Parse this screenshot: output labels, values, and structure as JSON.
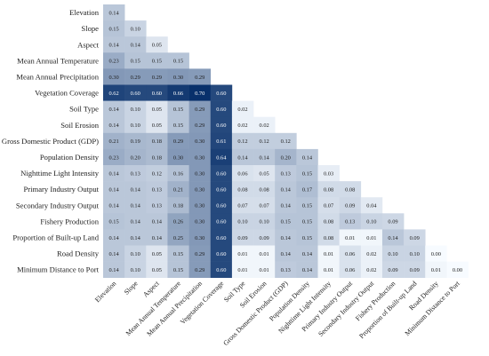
{
  "chart_data": {
    "type": "heatmap",
    "shape": "lower-triangular",
    "title": "",
    "xlabel": "",
    "ylabel": "",
    "color_scale": {
      "low": "#f7fbff",
      "high": "#08306b",
      "min": 0.0,
      "max": 0.7
    },
    "row_labels": [
      "Elevation",
      "Slope",
      "Aspect",
      "Mean Annual Temperature",
      "Mean Annual Precipitation",
      "Vegetation Coverage",
      "Soil Type",
      "Soil Erosion",
      "Gross Domestic Product (GDP)",
      "Population Density",
      "Nighttime Light Intensity",
      "Primary Industry Output",
      "Secondary Industry Output",
      "Fishery Production",
      "Proportion of Built-up Land",
      "Road Density",
      "Minimum Distance to Port"
    ],
    "col_labels": [
      "Elevation",
      "Slope",
      "Aspect",
      "Mean Annual Temperature",
      "Mean Annual Precipitation",
      "Vegetation Coverage",
      "Soil Type",
      "Soil Erosion",
      "Gross Domestic Product (GDP)",
      "Population Density",
      "Nighttime Light Intensity",
      "Primary Industry Output",
      "Secondary Industry Output",
      "Fishery Production",
      "Proportion of Built-up Land",
      "Road Density",
      "Minimum Distance to Port"
    ],
    "values": [
      [
        "0.14"
      ],
      [
        "0.15",
        "0.10"
      ],
      [
        "0.14",
        "0.14",
        "0.05"
      ],
      [
        "0.23",
        "0.15",
        "0.15",
        "0.15"
      ],
      [
        "0.30",
        "0.29",
        "0.29",
        "0.30",
        "0.29"
      ],
      [
        "0.62",
        "0.60",
        "0.60",
        "0.66",
        "0.70",
        "0.60"
      ],
      [
        "0.14",
        "0.10",
        "0.05",
        "0.15",
        "0.29",
        "0.60",
        "0.02"
      ],
      [
        "0.14",
        "0.10",
        "0.05",
        "0.15",
        "0.29",
        "0.60",
        "0.02",
        "0.02"
      ],
      [
        "0.21",
        "0.19",
        "0.18",
        "0.29",
        "0.30",
        "0.61",
        "0.12",
        "0.12",
        "0.12"
      ],
      [
        "0.23",
        "0.20",
        "0.18",
        "0.30",
        "0.30",
        "0.64",
        "0.14",
        "0.14",
        "0.20",
        "0.14"
      ],
      [
        "0.14",
        "0.13",
        "0.12",
        "0.16",
        "0.30",
        "0.60",
        "0.06",
        "0.05",
        "0.13",
        "0.15",
        "0.03"
      ],
      [
        "0.14",
        "0.14",
        "0.13",
        "0.21",
        "0.30",
        "0.60",
        "0.08",
        "0.08",
        "0.14",
        "0.17",
        "0.08",
        "0.08"
      ],
      [
        "0.14",
        "0.14",
        "0.13",
        "0.18",
        "0.30",
        "0.60",
        "0.07",
        "0.07",
        "0.14",
        "0.15",
        "0.07",
        "0.09",
        "0.04"
      ],
      [
        "0.15",
        "0.14",
        "0.14",
        "0.26",
        "0.30",
        "0.60",
        "0.10",
        "0.10",
        "0.15",
        "0.15",
        "0.08",
        "0.13",
        "0.10",
        "0.09"
      ],
      [
        "0.14",
        "0.14",
        "0.14",
        "0.25",
        "0.30",
        "0.60",
        "0.09",
        "0.09",
        "0.14",
        "0.15",
        "0.08",
        "0.01",
        "0.01",
        "0.14",
        "0.09"
      ],
      [
        "0.14",
        "0.10",
        "0.05",
        "0.15",
        "0.29",
        "0.60",
        "0.01",
        "0.01",
        "0.14",
        "0.14",
        "0.01",
        "0.06",
        "0.02",
        "0.10",
        "0.10",
        "0.00"
      ],
      [
        "0.14",
        "0.10",
        "0.05",
        "0.15",
        "0.29",
        "0.60",
        "0.01",
        "0.01",
        "0.13",
        "0.14",
        "0.01",
        "0.06",
        "0.02",
        "0.09",
        "0.09",
        "0.01",
        "0.00"
      ]
    ]
  }
}
